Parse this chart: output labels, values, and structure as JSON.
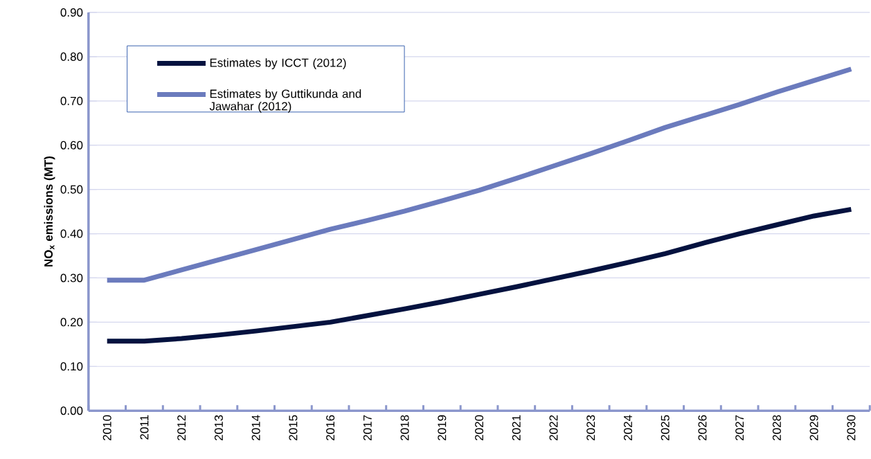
{
  "chart_data": {
    "type": "line",
    "ylabel": "NO$_{x}$ emissions (MT)",
    "categories": [
      "2010",
      "2011",
      "2012",
      "2013",
      "2014",
      "2015",
      "2016",
      "2017",
      "2018",
      "2019",
      "2020",
      "2021",
      "2022",
      "2023",
      "2024",
      "2025",
      "2026",
      "2027",
      "2028",
      "2029",
      "2030"
    ],
    "series": [
      {
        "name": "Estimates by ICCT (2012)",
        "color": "#04123f",
        "values": [
          0.157,
          0.157,
          0.163,
          0.171,
          0.18,
          0.19,
          0.2,
          0.215,
          0.23,
          0.246,
          0.263,
          0.28,
          0.298,
          0.316,
          0.335,
          0.355,
          0.378,
          0.4,
          0.42,
          0.44,
          0.455
        ]
      },
      {
        "name": "Estimates by Guttikunda and Jawahar (2012)",
        "color": "#6b7bbd",
        "values": [
          0.295,
          0.295,
          0.318,
          0.341,
          0.364,
          0.387,
          0.41,
          0.43,
          0.451,
          0.474,
          0.498,
          0.525,
          0.553,
          0.581,
          0.61,
          0.64,
          0.666,
          0.692,
          0.72,
          0.746,
          0.772
        ]
      }
    ],
    "ylim": [
      0,
      0.9
    ],
    "yticks": [
      {
        "value": 0,
        "label": "0.00"
      },
      {
        "value": 0.1,
        "label": "0.10"
      },
      {
        "value": 0.2,
        "label": "0.20"
      },
      {
        "value": 0.3,
        "label": "0.30"
      },
      {
        "value": 0.4,
        "label": "0.40"
      },
      {
        "value": 0.5,
        "label": "0.50"
      },
      {
        "value": 0.6,
        "label": "0.60"
      },
      {
        "value": 0.7,
        "label": "0.70"
      },
      {
        "value": 0.8,
        "label": "0.80"
      },
      {
        "value": 0.9,
        "label": "0.90"
      }
    ],
    "grid": "y",
    "legend": "top left",
    "marker": "none",
    "line_style": "solid"
  }
}
